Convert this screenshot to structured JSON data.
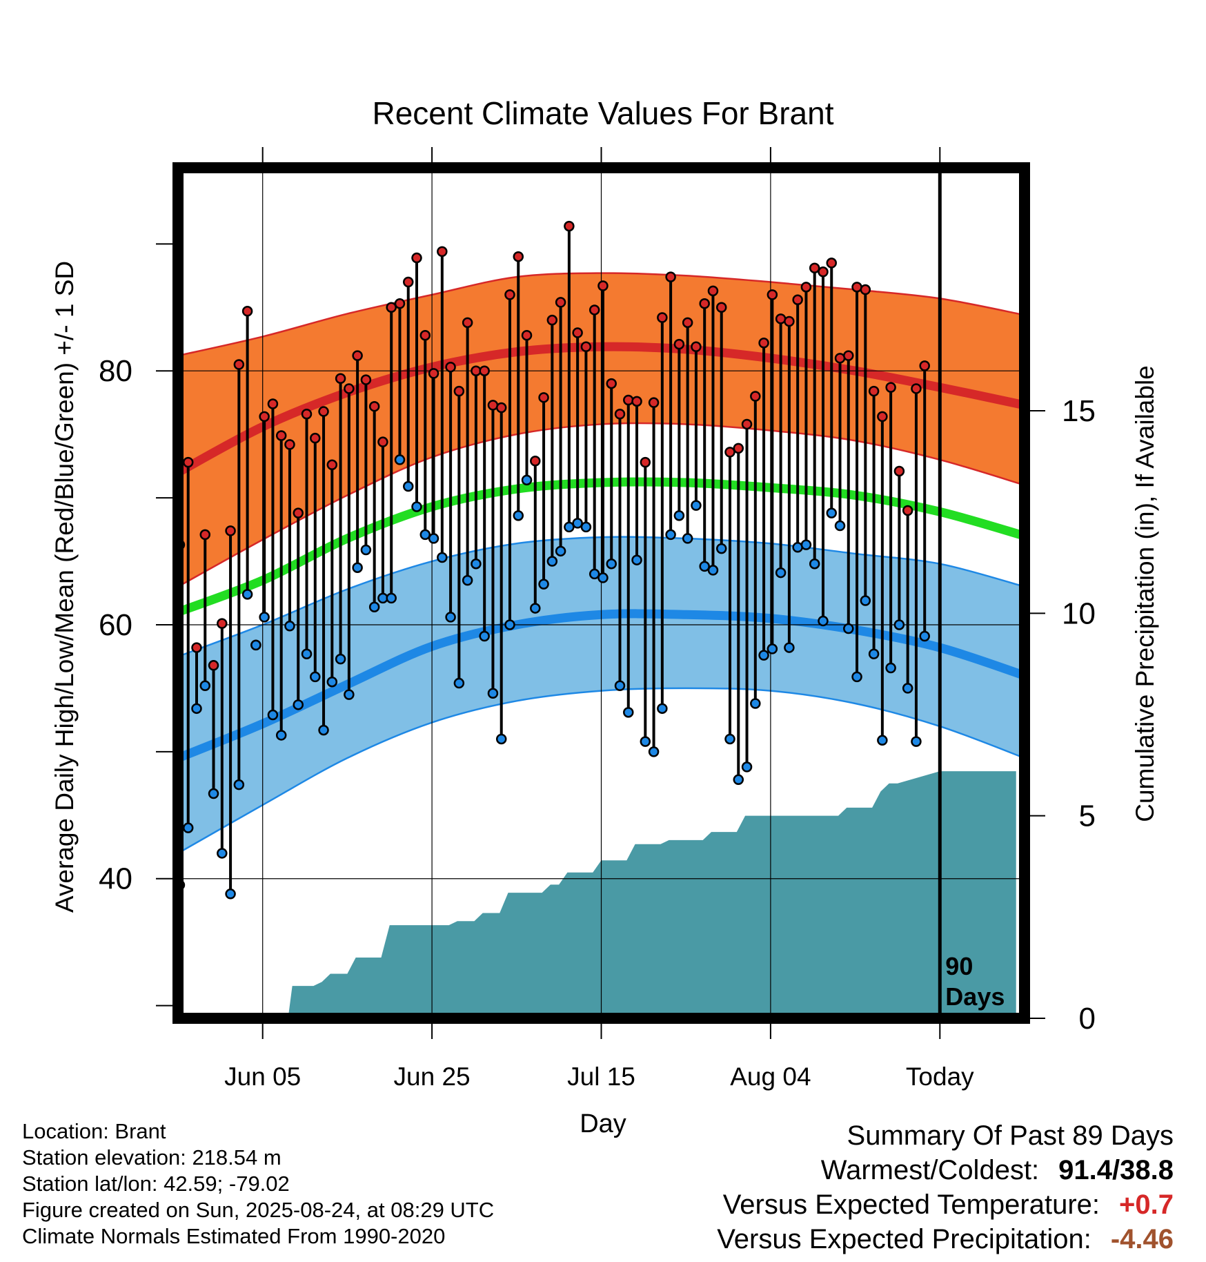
{
  "chart_data": {
    "type": "line",
    "title": "Recent Climate Values For Brant",
    "xlabel": "Day",
    "ylabel": "Average Daily High/Low/Mean (Red/Blue/Green) +/- 1 SD",
    "y2label": "Cumulative Precipitation (in), If Available",
    "x_ticks": [
      {
        "day": 10,
        "label": "Jun 05"
      },
      {
        "day": 30,
        "label": "Jun 25"
      },
      {
        "day": 50,
        "label": "Jul 15"
      },
      {
        "day": 70,
        "label": "Aug 04"
      },
      {
        "day": 90,
        "label": "Today"
      }
    ],
    "xlim": [
      0,
      100
    ],
    "ylim": [
      29,
      96
    ],
    "y_ticks": [
      40,
      60,
      80
    ],
    "y2lim": [
      0,
      21
    ],
    "y2_ticks": [
      0,
      5,
      10,
      15
    ],
    "today_annotation": "90\nDays",
    "grid": true,
    "normals": {
      "days": [
        0,
        10,
        20,
        30,
        40,
        50,
        60,
        70,
        80,
        90,
        100
      ],
      "high_mean": [
        72.0,
        75.6,
        78.3,
        80.3,
        81.5,
        81.9,
        81.7,
        81.0,
        80.0,
        78.7,
        77.3
      ],
      "high_upper": [
        81.2,
        82.7,
        84.5,
        86.0,
        87.4,
        87.7,
        87.5,
        87.0,
        86.4,
        85.7,
        84.4
      ],
      "high_lower": [
        63.0,
        66.7,
        70.2,
        73.2,
        75.0,
        75.8,
        75.8,
        75.3,
        74.5,
        73.0,
        71.0
      ],
      "mean": [
        61.0,
        63.5,
        66.8,
        69.3,
        70.7,
        71.2,
        71.2,
        70.8,
        70.2,
        68.9,
        67.0
      ],
      "low_mean": [
        49.5,
        52.2,
        55.3,
        58.3,
        60.0,
        60.8,
        60.8,
        60.5,
        59.6,
        58.2,
        56.0
      ],
      "low_upper": [
        57.5,
        60.0,
        62.8,
        65.0,
        66.4,
        66.9,
        66.8,
        66.4,
        65.6,
        64.8,
        63.0
      ],
      "low_lower": [
        42.0,
        45.8,
        49.5,
        52.3,
        54.0,
        54.8,
        55.0,
        54.8,
        53.8,
        52.0,
        49.5
      ]
    },
    "series": [
      {
        "name": "High",
        "color": "#d62828",
        "values": [
          66.3,
          72.8,
          58.2,
          67.1,
          56.8,
          60.1,
          67.4,
          80.5,
          84.7,
          58.4,
          76.4,
          77.4,
          74.9,
          74.2,
          68.8,
          76.6,
          74.7,
          76.8,
          72.6,
          79.4,
          78.6,
          81.2,
          79.3,
          77.2,
          74.4,
          85.0,
          85.3,
          87.0,
          88.9,
          82.8,
          79.8,
          89.4,
          80.3,
          78.4,
          83.8,
          80.0,
          80.0,
          77.3,
          77.1,
          86.0,
          89.0,
          82.8,
          72.9,
          77.9,
          84.0,
          85.4,
          91.4,
          83.0,
          81.9,
          84.8,
          86.7,
          79.0,
          76.6,
          77.7,
          77.6,
          72.8,
          77.5,
          84.2,
          87.4,
          82.1,
          83.8,
          81.9,
          85.3,
          86.3,
          85.0,
          73.6,
          73.9,
          75.8,
          78.0,
          82.2,
          86.0,
          84.1,
          83.9,
          85.6,
          86.6,
          88.1,
          87.8,
          88.5,
          81.0,
          81.2,
          86.6,
          86.4,
          78.4,
          76.4,
          78.7,
          72.1,
          69.0,
          78.6,
          80.4
        ]
      },
      {
        "name": "Low",
        "color": "#1e88e5",
        "values": [
          39.5,
          44.0,
          53.4,
          55.2,
          46.7,
          42.0,
          38.8,
          47.4,
          62.4,
          58.4,
          60.6,
          52.9,
          51.3,
          59.9,
          53.7,
          57.7,
          55.9,
          51.7,
          55.5,
          57.3,
          54.5,
          64.5,
          65.9,
          61.4,
          62.1,
          62.1,
          73.0,
          70.9,
          69.3,
          67.1,
          66.8,
          65.3,
          60.6,
          55.4,
          63.5,
          64.8,
          59.1,
          54.6,
          51.0,
          60.0,
          68.6,
          71.4,
          61.3,
          63.2,
          65.0,
          65.8,
          67.7,
          68.0,
          67.7,
          64.0,
          63.7,
          64.8,
          55.2,
          53.1,
          65.1,
          50.8,
          50.0,
          53.4,
          67.1,
          68.6,
          66.8,
          69.4,
          64.6,
          64.3,
          66.0,
          51.0,
          47.8,
          48.8,
          53.8,
          57.6,
          58.1,
          64.1,
          58.2,
          66.1,
          66.3,
          64.8,
          60.3,
          68.8,
          67.8,
          59.7,
          55.9,
          61.9,
          57.7,
          50.9,
          56.6,
          60.0,
          55.0,
          50.8,
          59.1
        ]
      }
    ],
    "precip": {
      "name": "Cumulative Precipitation",
      "color": "#4a9aa5",
      "days": [
        13,
        13.5,
        16,
        17,
        18,
        20,
        21,
        24,
        25,
        32,
        33,
        35,
        36,
        38,
        39,
        43,
        44,
        45,
        46,
        49,
        50,
        53,
        54,
        57,
        58,
        62,
        63,
        66,
        67,
        70,
        71,
        78,
        79,
        82,
        83,
        84,
        85,
        90,
        99
      ],
      "values": [
        0.0,
        0.8,
        0.8,
        0.9,
        1.1,
        1.1,
        1.5,
        1.5,
        2.3,
        2.3,
        2.4,
        2.4,
        2.6,
        2.6,
        3.1,
        3.1,
        3.3,
        3.3,
        3.6,
        3.6,
        3.9,
        3.9,
        4.3,
        4.3,
        4.4,
        4.4,
        4.6,
        4.6,
        5.0,
        5.0,
        5.0,
        5.0,
        5.2,
        5.2,
        5.6,
        5.8,
        5.8,
        6.1,
        6.1
      ]
    }
  },
  "info": {
    "location": "Location: Brant",
    "elevation": "Station elevation: 218.54 m",
    "latlon": "Station lat/lon: 42.59; -79.02",
    "created": "Figure created on Sun, 2025-08-24, at 08:29 UTC",
    "normals": "Climate Normals Estimated From 1990-2020"
  },
  "summary": {
    "title": "Summary Of Past 89 Days",
    "warmest_label": "Warmest/Coldest:",
    "warmest_value": "91.4/38.8",
    "temp_label": "Versus Expected Temperature:",
    "temp_value": "+0.7",
    "precip_label": "Versus Expected Precipitation:",
    "precip_value": "-4.46"
  },
  "colors": {
    "high_band": "#f47a30",
    "high_line": "#d62828",
    "mean_line": "#22dd22",
    "low_band": "#80bfe6",
    "low_line": "#1e88e5",
    "precip": "#4a9aa5",
    "temp_value": "#d62828",
    "precip_value": "#a0522d"
  }
}
